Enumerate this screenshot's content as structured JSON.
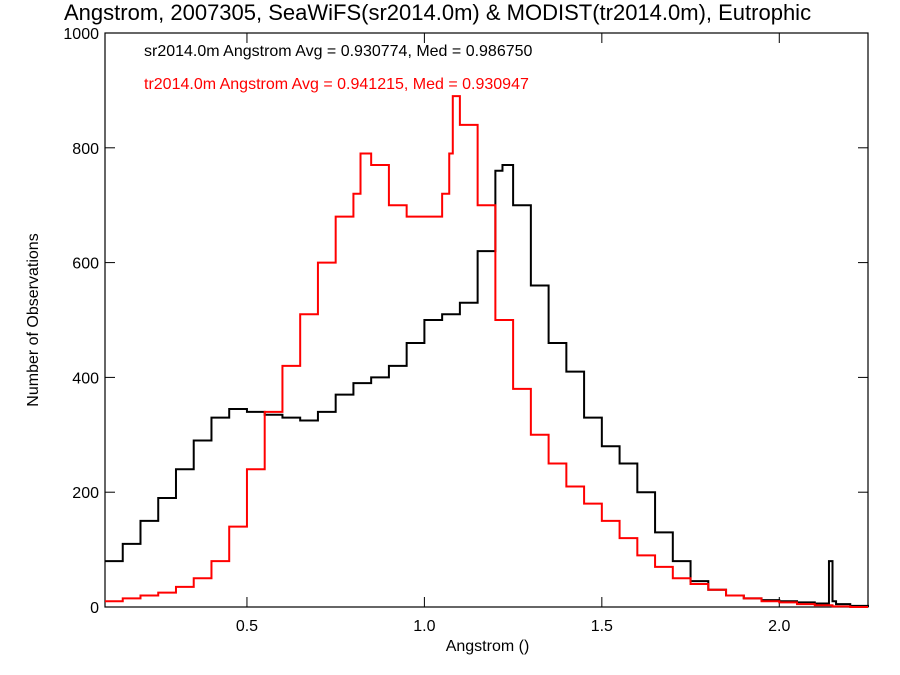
{
  "chart_data": {
    "type": "line",
    "title": "Angstrom, 2007305, SeaWiFS(sr2014.0m) & MODIST(tr2014.0m), Eutrophic",
    "xlabel": "Angstrom ()",
    "ylabel": "Number of Observations",
    "xlim": [
      0.1,
      2.25
    ],
    "ylim": [
      0,
      1000
    ],
    "x_ticks": [
      "0.5",
      "1.0",
      "1.5",
      "2.0"
    ],
    "y_ticks": [
      "0",
      "200",
      "400",
      "600",
      "800",
      "1000"
    ],
    "grid": false,
    "legend_position": "top-left",
    "series": [
      {
        "name": "sr2014.0m Angstrom Avg = 0.930774, Med = 0.986750",
        "color": "#000000",
        "x": [
          0.1,
          0.15,
          0.2,
          0.25,
          0.3,
          0.35,
          0.4,
          0.45,
          0.5,
          0.55,
          0.6,
          0.65,
          0.7,
          0.75,
          0.8,
          0.85,
          0.9,
          0.95,
          1.0,
          1.05,
          1.1,
          1.15,
          1.2,
          1.22,
          1.25,
          1.3,
          1.35,
          1.4,
          1.45,
          1.5,
          1.55,
          1.6,
          1.65,
          1.7,
          1.75,
          1.8,
          1.85,
          1.9,
          1.95,
          2.0,
          2.05,
          2.1,
          2.14,
          2.15,
          2.16,
          2.2,
          2.25
        ],
        "y": [
          80,
          110,
          150,
          190,
          240,
          290,
          330,
          345,
          340,
          335,
          330,
          325,
          340,
          370,
          390,
          400,
          420,
          460,
          500,
          510,
          530,
          620,
          760,
          770,
          700,
          560,
          460,
          410,
          330,
          280,
          250,
          200,
          130,
          80,
          45,
          30,
          20,
          15,
          12,
          10,
          8,
          6,
          80,
          10,
          5,
          2,
          0
        ]
      },
      {
        "name": "tr2014.0m Angstrom Avg = 0.941215, Med = 0.930947",
        "color": "#ff0000",
        "x": [
          0.1,
          0.15,
          0.2,
          0.25,
          0.3,
          0.35,
          0.4,
          0.45,
          0.5,
          0.55,
          0.6,
          0.65,
          0.7,
          0.75,
          0.8,
          0.82,
          0.85,
          0.9,
          0.95,
          1.0,
          1.05,
          1.07,
          1.08,
          1.1,
          1.15,
          1.2,
          1.25,
          1.3,
          1.35,
          1.4,
          1.45,
          1.5,
          1.55,
          1.6,
          1.65,
          1.7,
          1.75,
          1.8,
          1.85,
          1.9,
          1.95,
          2.0,
          2.05,
          2.1,
          2.15,
          2.2,
          2.25
        ],
        "y": [
          10,
          15,
          20,
          25,
          35,
          50,
          80,
          140,
          240,
          340,
          420,
          510,
          600,
          680,
          720,
          790,
          770,
          700,
          680,
          680,
          720,
          790,
          890,
          840,
          700,
          500,
          380,
          300,
          250,
          210,
          180,
          150,
          120,
          90,
          70,
          50,
          40,
          30,
          20,
          15,
          10,
          8,
          5,
          3,
          1,
          0,
          0
        ]
      }
    ]
  }
}
